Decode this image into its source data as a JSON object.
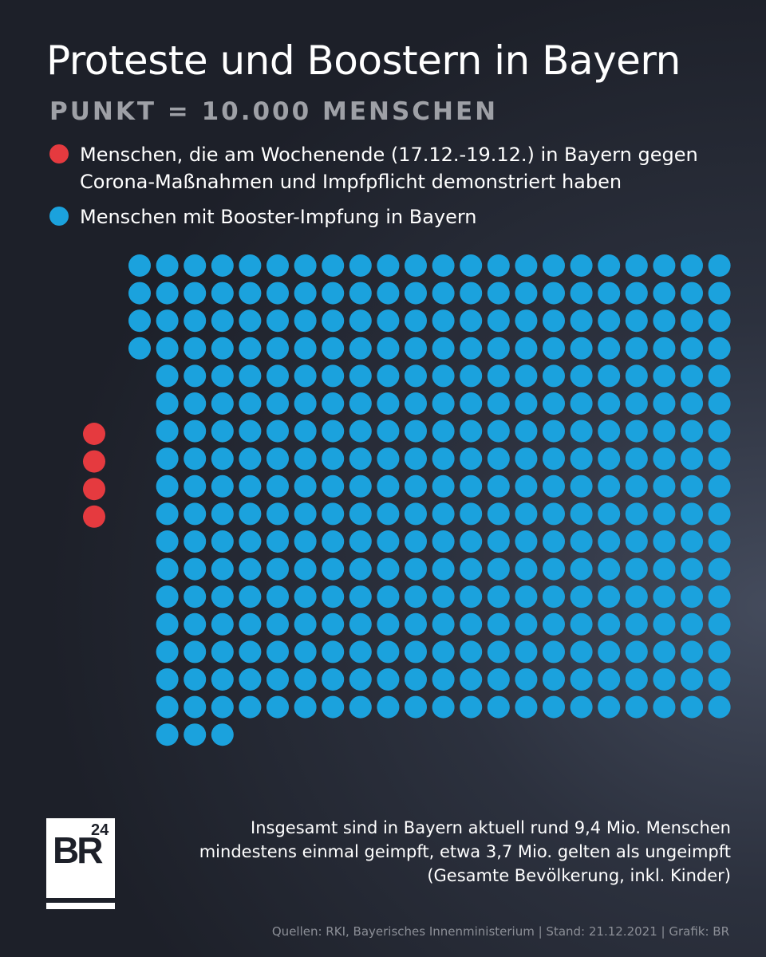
{
  "header": {
    "title": "Proteste und Boostern in Bayern",
    "subtitle": "PUNKT = 10.000 MENSCHEN"
  },
  "legend": {
    "items": [
      {
        "label": "Menschen, die am Wochenende (17.12.-19.12.) in Bayern gegen Corona-Maßnahmen und Impfpflicht demonstriert haben",
        "color": "#e53a3f"
      },
      {
        "label": "Menschen mit Booster-Impfung in Bayern",
        "color": "#1ba2dd"
      }
    ]
  },
  "chart_data": {
    "type": "waffle",
    "unit_per_dot": 10000,
    "series": [
      {
        "name": "Menschen, die am Wochenende (17.12.-19.12.) in Bayern gegen Corona-Maßnahmen und Impfpflicht demonstriert haben",
        "dots": 4,
        "value": 40000,
        "color": "#e53a3f"
      },
      {
        "name": "Menschen mit Booster-Impfung in Bayern",
        "dots": 364,
        "value": 3640000,
        "color": "#1ba2dd"
      }
    ]
  },
  "logo": {
    "text": "BR",
    "number": "24"
  },
  "note": "Insgesamt sind in Bayern aktuell rund 9,4 Mio. Menschen mindestens einmal geimpft, etwa 3,7 Mio. gelten als ungeimpft (Gesamte Bevölkerung, inkl. Kinder)",
  "source": "Quellen: RKI, Bayerisches Innenministerium | Stand: 21.12.2021 | Grafik: BR"
}
